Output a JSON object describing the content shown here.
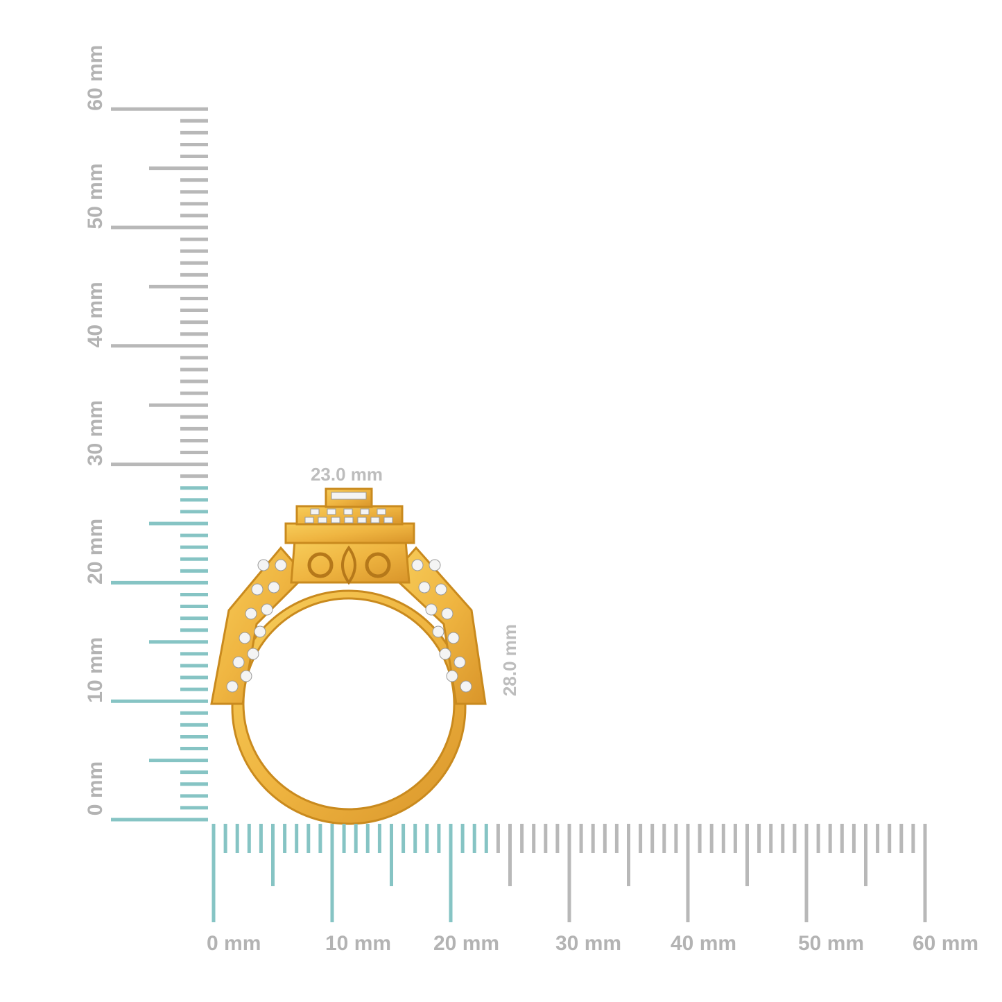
{
  "horizontal_ruler": {
    "labels": [
      "0 mm",
      "10 mm",
      "20 mm",
      "30 mm",
      "40 mm",
      "50 mm",
      "60 mm"
    ]
  },
  "vertical_ruler": {
    "labels": [
      "0 mm",
      "10 mm",
      "20 mm",
      "30 mm",
      "40 mm",
      "50 mm",
      "60 mm"
    ]
  },
  "dimensions": {
    "width": "23.0 mm",
    "height": "28.0 mm"
  }
}
